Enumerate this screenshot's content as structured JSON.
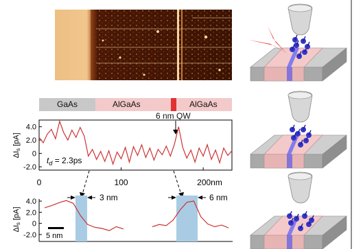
{
  "layer_bar": {
    "labels": [
      "GaAs",
      "AlGaAs",
      "AlGaAs"
    ],
    "colors": {
      "gaas": "#c8c8c8",
      "algaas": "#f3c9c9",
      "qw": "#e23232"
    }
  },
  "qw_annotation": "6 nm QW",
  "main_plot": {
    "ylabel": "ΔIs [pA]",
    "td_label": "t",
    "td_sub": "d",
    "td_value": " = 2.3ps",
    "yticks": [
      "4.0",
      "2.0",
      "0",
      "-2.0"
    ],
    "xticks": [
      "0",
      "100",
      "200nm"
    ]
  },
  "zoom_left": {
    "ylabel": "ΔIs [pA]",
    "yticks": [
      "4.0",
      "2.0",
      "0",
      "-2.0"
    ],
    "width_label": "3 nm",
    "scalebar_label": "5 nm"
  },
  "zoom_right": {
    "width_label": "6 nm"
  },
  "chart_data": [
    {
      "type": "line",
      "title": "",
      "xlabel": "",
      "ylabel": "ΔIs [pA]",
      "xlim": [
        0,
        235
      ],
      "ylim": [
        -2.5,
        5.0
      ],
      "color": "#cc3333",
      "x": [
        0,
        5,
        10,
        15,
        20,
        25,
        30,
        35,
        40,
        45,
        50,
        55,
        60,
        65,
        70,
        75,
        80,
        85,
        90,
        95,
        100,
        105,
        110,
        115,
        120,
        125,
        130,
        135,
        140,
        145,
        150,
        155,
        160,
        165,
        170,
        175,
        180,
        185,
        190,
        195,
        200,
        205,
        210,
        215,
        220,
        225,
        230,
        235
      ],
      "y": [
        2.4,
        1.6,
        2.9,
        3.6,
        2.2,
        4.8,
        3.1,
        2.0,
        3.5,
        2.4,
        3.9,
        2.6,
        -0.4,
        0.6,
        -0.9,
        0.3,
        -1.2,
        0.4,
        -1.6,
        0.2,
        -0.8,
        0.9,
        -1.3,
        1.0,
        -0.3,
        1.3,
        -0.6,
        0.8,
        -1.0,
        0.6,
        -0.2,
        1.1,
        -0.4,
        1.4,
        4.0,
        0.9,
        -0.7,
        0.5,
        -1.3,
        0.8,
        -0.4,
        1.3,
        -0.9,
        0.5,
        -1.4,
        0.8,
        -0.3,
        0.4
      ]
    },
    {
      "type": "line",
      "title": "",
      "xlabel": "",
      "ylabel": "ΔIs [pA]",
      "ylim": [
        -2.5,
        5.0
      ],
      "color": "#cc3333",
      "series": [
        {
          "x": [
            0,
            2,
            4,
            6,
            8,
            10,
            12,
            14,
            16,
            18,
            20,
            22
          ],
          "y": [
            2.8,
            3.2,
            3.7,
            4.1,
            3.6,
            1.4,
            -0.2,
            -0.7,
            -0.9,
            -1.3,
            -0.6,
            -1.0
          ]
        },
        {
          "x": [
            0,
            2,
            4,
            6,
            8,
            10,
            12,
            14,
            16,
            18,
            20,
            22
          ],
          "y": [
            -0.6,
            -0.2,
            -0.4,
            0.6,
            2.4,
            3.8,
            4.0,
            1.2,
            -0.1,
            -0.6,
            -0.3,
            -0.8
          ]
        }
      ]
    }
  ]
}
